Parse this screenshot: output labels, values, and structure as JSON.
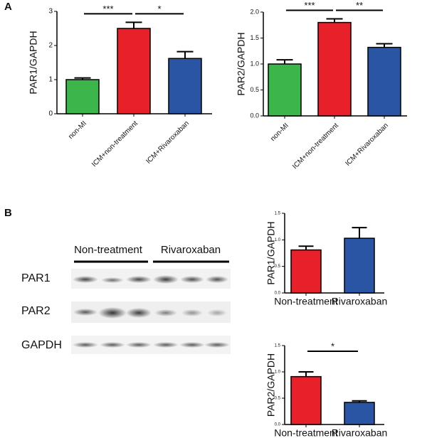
{
  "panels": [
    "A",
    "B"
  ],
  "blot": {
    "groups": [
      "Non-treatment",
      "Rivaroxaban"
    ],
    "rows": [
      "PAR1",
      "PAR2",
      "GAPDH"
    ]
  },
  "chart_data": [
    {
      "type": "bar",
      "ylabel": "PAR1/GAPDH",
      "categories": [
        "non-MI",
        "ICM+non-treatment",
        "ICM+Rivaroxaban"
      ],
      "values": [
        1.0,
        2.5,
        1.62
      ],
      "errors": [
        0.05,
        0.18,
        0.2
      ],
      "colors": [
        "#3cb54a",
        "#e8202a",
        "#2a55a5"
      ],
      "ylim": [
        0,
        3
      ],
      "yticks": [
        0,
        1,
        2,
        3
      ],
      "significance": [
        {
          "label": "***",
          "pair": [
            0,
            1
          ]
        },
        {
          "label": "*",
          "pair": [
            1,
            2
          ]
        }
      ]
    },
    {
      "type": "bar",
      "ylabel": "PAR2/GAPDH",
      "categories": [
        "non-MI",
        "ICM+non-treatment",
        "ICM+Rivaroxaban"
      ],
      "values": [
        1.0,
        1.8,
        1.32
      ],
      "errors": [
        0.08,
        0.07,
        0.07
      ],
      "colors": [
        "#3cb54a",
        "#e8202a",
        "#2a55a5"
      ],
      "ylim": [
        0,
        2
      ],
      "yticks": [
        {
          "value": 0,
          "label": "0.0"
        },
        0.5,
        {
          "value": 1,
          "label": "1.0"
        },
        1.5,
        {
          "value": 2,
          "label": "2.0"
        }
      ],
      "significance": [
        {
          "label": "***",
          "pair": [
            0,
            1
          ]
        },
        {
          "label": "**",
          "pair": [
            1,
            2
          ]
        }
      ]
    },
    {
      "type": "bar",
      "ylabel": "PAR1/GAPDH",
      "categories": [
        "Non-treatment",
        "Rivaroxaban"
      ],
      "values": [
        0.81,
        1.03
      ],
      "errors": [
        0.07,
        0.2
      ],
      "colors": [
        "#e8202a",
        "#2a55a5"
      ],
      "ylim": [
        0,
        1.5
      ],
      "yticks": [
        {
          "value": 0,
          "label": "0.0"
        },
        0.5,
        {
          "value": 1,
          "label": "1.0"
        },
        1.5
      ],
      "significance": []
    },
    {
      "type": "bar",
      "ylabel": "PAR2/GAPDH",
      "categories": [
        "Non-treatment",
        "Rivaroxaban"
      ],
      "values": [
        0.91,
        0.42
      ],
      "errors": [
        0.09,
        0.03
      ],
      "colors": [
        "#e8202a",
        "#2a55a5"
      ],
      "ylim": [
        0,
        1.5
      ],
      "yticks": [
        {
          "value": 0,
          "label": "0.0"
        },
        0.5,
        {
          "value": 1,
          "label": "1.0"
        },
        1.5
      ],
      "significance": [
        {
          "label": "*",
          "pair": [
            0,
            1
          ]
        }
      ]
    }
  ]
}
